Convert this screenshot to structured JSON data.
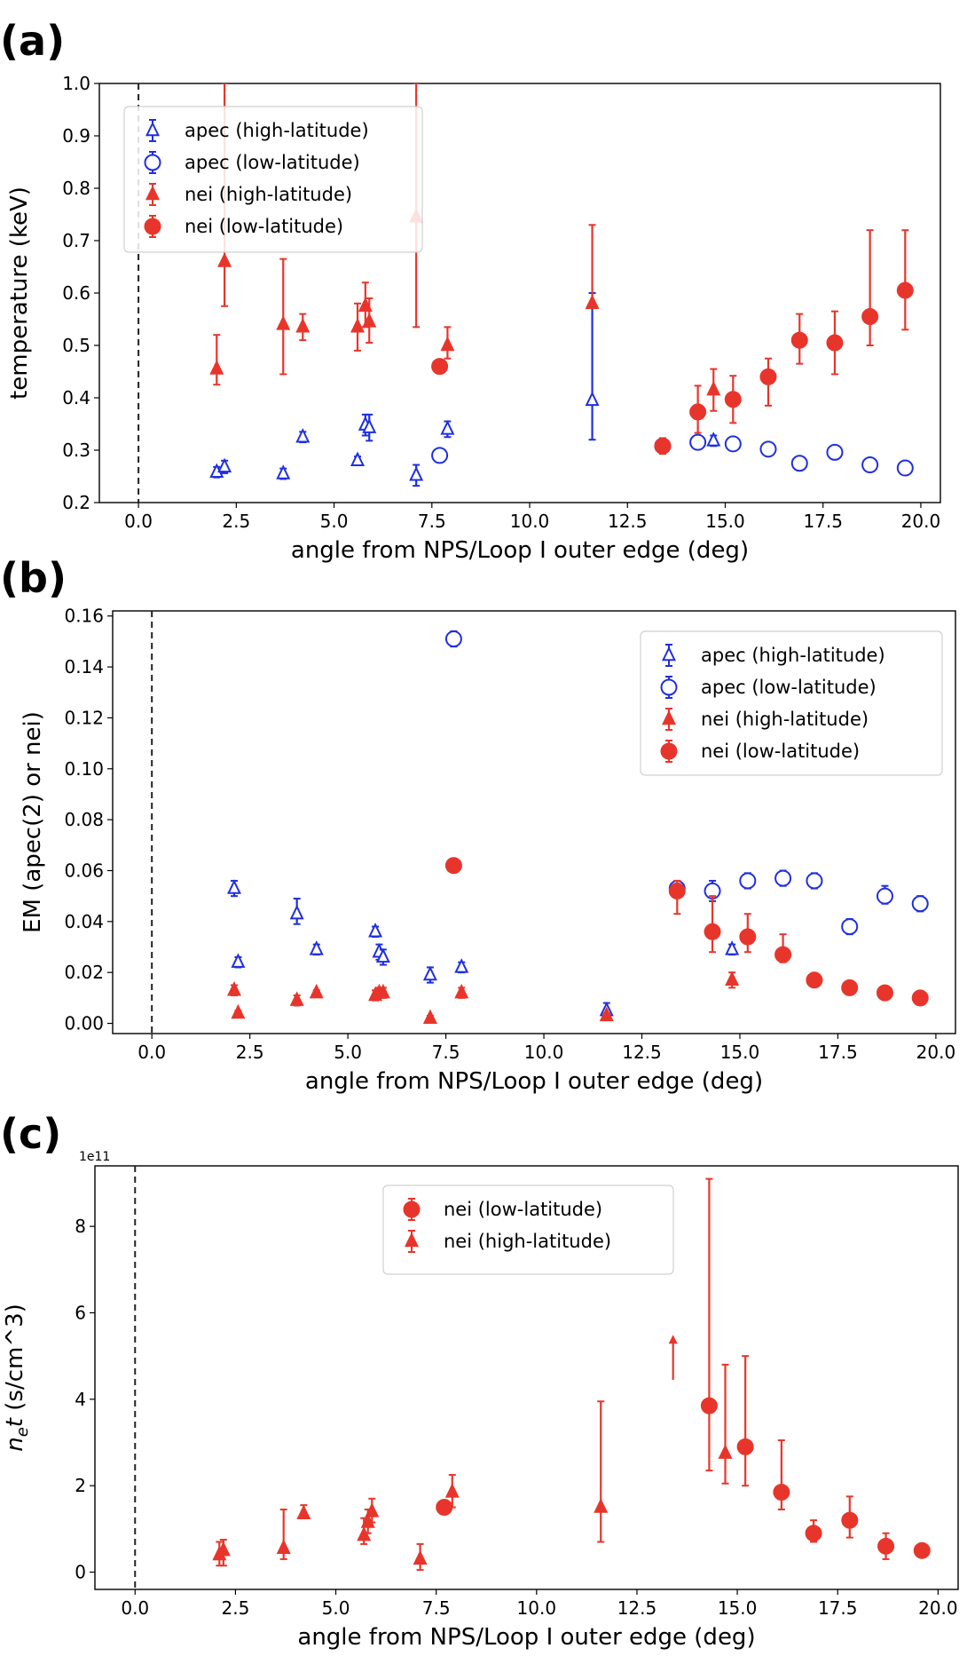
{
  "colors": {
    "apec": "#1f2fe0",
    "nei": "#e8352b",
    "axis": "#000000"
  },
  "panels": [
    {
      "label": "(a)",
      "xlabel": "angle from NPS/Loop I outer edge (deg)",
      "ylabel": "temperature (keV)",
      "offset_text": "",
      "xticks": [
        "0.0",
        "2.5",
        "5.0",
        "7.5",
        "10.0",
        "12.5",
        "15.0",
        "17.5",
        "20.0"
      ],
      "yticks": [
        "0.2",
        "0.3",
        "0.4",
        "0.5",
        "0.6",
        "0.7",
        "0.8",
        "0.9",
        "1.0"
      ],
      "legend": [
        "apec (high-latitude)",
        "apec (low-latitude)",
        "nei (high-latitude)",
        "nei (low-latitude)"
      ]
    },
    {
      "label": "(b)",
      "xlabel": "angle from NPS/Loop I outer edge (deg)",
      "ylabel": "EM (apec(2) or nei)",
      "offset_text": "",
      "xticks": [
        "0.0",
        "2.5",
        "5.0",
        "7.5",
        "10.0",
        "12.5",
        "15.0",
        "17.5",
        "20.0"
      ],
      "yticks": [
        "0.00",
        "0.02",
        "0.04",
        "0.06",
        "0.08",
        "0.10",
        "0.12",
        "0.14",
        "0.16"
      ],
      "legend": [
        "apec (high-latitude)",
        "apec (low-latitude)",
        "nei (high-latitude)",
        "nei (low-latitude)"
      ]
    },
    {
      "label": "(c)",
      "xlabel": "angle from NPS/Loop I outer edge (deg)",
      "ylabel": "n_et (s/cm^3)",
      "offset_text": "1e11",
      "xticks": [
        "0.0",
        "2.5",
        "5.0",
        "7.5",
        "10.0",
        "12.5",
        "15.0",
        "17.5",
        "20.0"
      ],
      "yticks": [
        "0",
        "2",
        "4",
        "6",
        "8"
      ],
      "legend": [
        "nei (low-latitude)",
        "nei (high-latitude)"
      ]
    }
  ],
  "chart_data": [
    {
      "type": "scatter",
      "title": "(a)",
      "xlabel": "angle from NPS/Loop I outer edge (deg)",
      "ylabel": "temperature (keV)",
      "xlim": [
        -1,
        20.5
      ],
      "ylim": [
        0.2,
        1.0
      ],
      "legend_position": "upper-left",
      "series": [
        {
          "name": "apec (high-latitude)",
          "marker": "open-triangle",
          "color": "apec",
          "x": [
            2.0,
            2.2,
            3.7,
            4.2,
            5.6,
            5.8,
            5.9,
            7.1,
            7.9,
            11.6,
            14.7
          ],
          "y": [
            0.258,
            0.268,
            0.255,
            0.325,
            0.28,
            0.348,
            0.343,
            0.252,
            0.34,
            0.395,
            0.318
          ],
          "err_low": [
            0.01,
            0.012,
            0.01,
            0.01,
            0.008,
            0.02,
            0.025,
            0.02,
            0.015,
            0.075,
            0.01
          ],
          "err_high": [
            0.01,
            0.012,
            0.01,
            0.01,
            0.008,
            0.02,
            0.025,
            0.02,
            0.015,
            0.205,
            0.01
          ]
        },
        {
          "name": "apec (low-latitude)",
          "marker": "open-circle",
          "color": "apec",
          "x": [
            7.7,
            13.4,
            14.3,
            15.2,
            16.1,
            16.9,
            17.8,
            18.7,
            19.6
          ],
          "y": [
            0.29,
            0.308,
            0.315,
            0.312,
            0.302,
            0.275,
            0.296,
            0.272,
            0.266
          ],
          "err_low": [
            0.005,
            0.005,
            0.005,
            0.005,
            0.005,
            0.005,
            0.005,
            0.005,
            0.005
          ],
          "err_high": [
            0.005,
            0.005,
            0.005,
            0.005,
            0.005,
            0.005,
            0.005,
            0.005,
            0.005
          ]
        },
        {
          "name": "nei (high-latitude)",
          "marker": "filled-triangle",
          "color": "nei",
          "x": [
            2.0,
            2.2,
            3.7,
            4.2,
            5.6,
            5.8,
            5.9,
            7.1,
            7.9,
            11.6,
            14.7
          ],
          "y": [
            0.455,
            0.66,
            0.54,
            0.535,
            0.535,
            0.575,
            0.545,
            0.745,
            0.5,
            0.58,
            0.415
          ],
          "err_low": [
            0.03,
            0.085,
            0.095,
            0.025,
            0.045,
            0.04,
            0.04,
            0.21,
            0.025,
            0.0,
            0.04
          ],
          "err_high": [
            0.065,
            0.34,
            0.125,
            0.025,
            0.045,
            0.045,
            0.045,
            0.255,
            0.035,
            0.15,
            0.04
          ]
        },
        {
          "name": "nei (low-latitude)",
          "marker": "filled-circle",
          "color": "nei",
          "x": [
            7.7,
            13.4,
            14.3,
            15.2,
            16.1,
            16.9,
            17.8,
            18.7,
            19.6
          ],
          "y": [
            0.46,
            0.308,
            0.373,
            0.397,
            0.44,
            0.51,
            0.505,
            0.555,
            0.605
          ],
          "err_low": [
            0.005,
            0.015,
            0.04,
            0.045,
            0.055,
            0.045,
            0.06,
            0.055,
            0.075
          ],
          "err_high": [
            0.005,
            0.015,
            0.05,
            0.045,
            0.035,
            0.05,
            0.06,
            0.165,
            0.115
          ]
        }
      ]
    },
    {
      "type": "scatter",
      "title": "(b)",
      "xlabel": "angle from NPS/Loop I outer edge (deg)",
      "ylabel": "EM (apec(2) or nei)",
      "xlim": [
        -1,
        20.5
      ],
      "ylim": [
        -0.004,
        0.162
      ],
      "legend_position": "upper-right",
      "series": [
        {
          "name": "apec (high-latitude)",
          "marker": "open-triangle",
          "color": "apec",
          "x": [
            2.1,
            2.2,
            3.7,
            4.2,
            5.7,
            5.8,
            5.9,
            7.1,
            7.9,
            11.6,
            14.8
          ],
          "y": [
            0.053,
            0.024,
            0.043,
            0.029,
            0.036,
            0.028,
            0.026,
            0.019,
            0.022,
            0.005,
            0.029
          ],
          "err_low": [
            0.003,
            0.002,
            0.004,
            0.002,
            0.002,
            0.003,
            0.003,
            0.003,
            0.002,
            0.002,
            0.002
          ],
          "err_high": [
            0.003,
            0.002,
            0.006,
            0.002,
            0.002,
            0.003,
            0.003,
            0.003,
            0.002,
            0.003,
            0.002
          ]
        },
        {
          "name": "apec (low-latitude)",
          "marker": "open-circle",
          "color": "apec",
          "x": [
            7.7,
            13.4,
            14.3,
            15.2,
            16.1,
            16.9,
            17.8,
            18.7,
            19.6
          ],
          "y": [
            0.151,
            0.053,
            0.052,
            0.056,
            0.057,
            0.056,
            0.038,
            0.05,
            0.047
          ],
          "err_low": [
            0.003,
            0.003,
            0.004,
            0.003,
            0.003,
            0.003,
            0.003,
            0.003,
            0.003
          ],
          "err_high": [
            0.003,
            0.003,
            0.004,
            0.003,
            0.003,
            0.003,
            0.003,
            0.004,
            0.003
          ]
        },
        {
          "name": "nei (high-latitude)",
          "marker": "filled-triangle",
          "color": "nei",
          "x": [
            2.1,
            2.2,
            3.7,
            4.2,
            5.7,
            5.8,
            5.9,
            7.1,
            7.9,
            11.6,
            14.8
          ],
          "y": [
            0.013,
            0.004,
            0.009,
            0.012,
            0.011,
            0.012,
            0.012,
            0.002,
            0.012,
            0.003,
            0.017
          ],
          "err_low": [
            0.002,
            0.001,
            0.002,
            0.001,
            0.002,
            0.002,
            0.002,
            0.001,
            0.002,
            0.001,
            0.003
          ],
          "err_high": [
            0.002,
            0.001,
            0.002,
            0.001,
            0.002,
            0.002,
            0.002,
            0.001,
            0.002,
            0.001,
            0.003
          ]
        },
        {
          "name": "nei (low-latitude)",
          "marker": "filled-circle",
          "color": "nei",
          "x": [
            7.7,
            13.4,
            14.3,
            15.2,
            16.1,
            16.9,
            17.8,
            18.7,
            19.6
          ],
          "y": [
            0.062,
            0.052,
            0.036,
            0.034,
            0.027,
            0.017,
            0.014,
            0.012,
            0.01
          ],
          "err_low": [
            0.002,
            0.009,
            0.008,
            0.006,
            0.003,
            0.001,
            0.001,
            0.002,
            0.001
          ],
          "err_high": [
            0.002,
            0.004,
            0.014,
            0.009,
            0.008,
            0.001,
            0.001,
            0.002,
            0.001
          ]
        }
      ]
    },
    {
      "type": "scatter",
      "title": "(c)",
      "xlabel": "angle from NPS/Loop I outer edge (deg)",
      "ylabel": "n_et (s/cm^3)",
      "axis_offset": "1e11",
      "xlim": [
        -1,
        20.5
      ],
      "ylim": [
        -0.4,
        9.4
      ],
      "legend_position": "upper-center",
      "series": [
        {
          "name": "nei (low-latitude)",
          "marker": "filled-circle",
          "color": "nei",
          "x": [
            7.7,
            14.3,
            15.2,
            16.1,
            16.9,
            17.8,
            18.7,
            19.6
          ],
          "y": [
            1.5,
            3.85,
            2.9,
            1.85,
            0.9,
            1.2,
            0.6,
            0.5
          ],
          "err_low": [
            0.1,
            1.5,
            0.9,
            0.4,
            0.2,
            0.4,
            0.3,
            0.15
          ],
          "err_high": [
            0.1,
            5.25,
            2.1,
            1.2,
            0.3,
            0.55,
            0.3,
            0.15
          ]
        },
        {
          "name": "nei (high-latitude)",
          "marker": "filled-triangle",
          "color": "nei",
          "x": [
            2.1,
            2.2,
            3.7,
            4.2,
            5.7,
            5.8,
            5.9,
            7.1,
            7.9,
            11.6,
            14.7
          ],
          "y": [
            0.4,
            0.5,
            0.55,
            1.35,
            0.85,
            1.15,
            1.4,
            0.3,
            1.85,
            1.5,
            2.75
          ],
          "err_low": [
            0.25,
            0.35,
            0.25,
            0.1,
            0.2,
            0.25,
            0.25,
            0.25,
            0.35,
            0.8,
            0.7
          ],
          "err_high": [
            0.3,
            0.25,
            0.9,
            0.2,
            0.4,
            0.3,
            0.3,
            0.35,
            0.4,
            2.45,
            2.05
          ]
        },
        {
          "name": "nei (high-latitude, lower limit)",
          "marker": "arrow-up",
          "color": "nei",
          "x": [
            13.4
          ],
          "y": [
            4.45
          ],
          "err_low": [
            0
          ],
          "err_high": [
            1.0
          ]
        }
      ]
    }
  ]
}
